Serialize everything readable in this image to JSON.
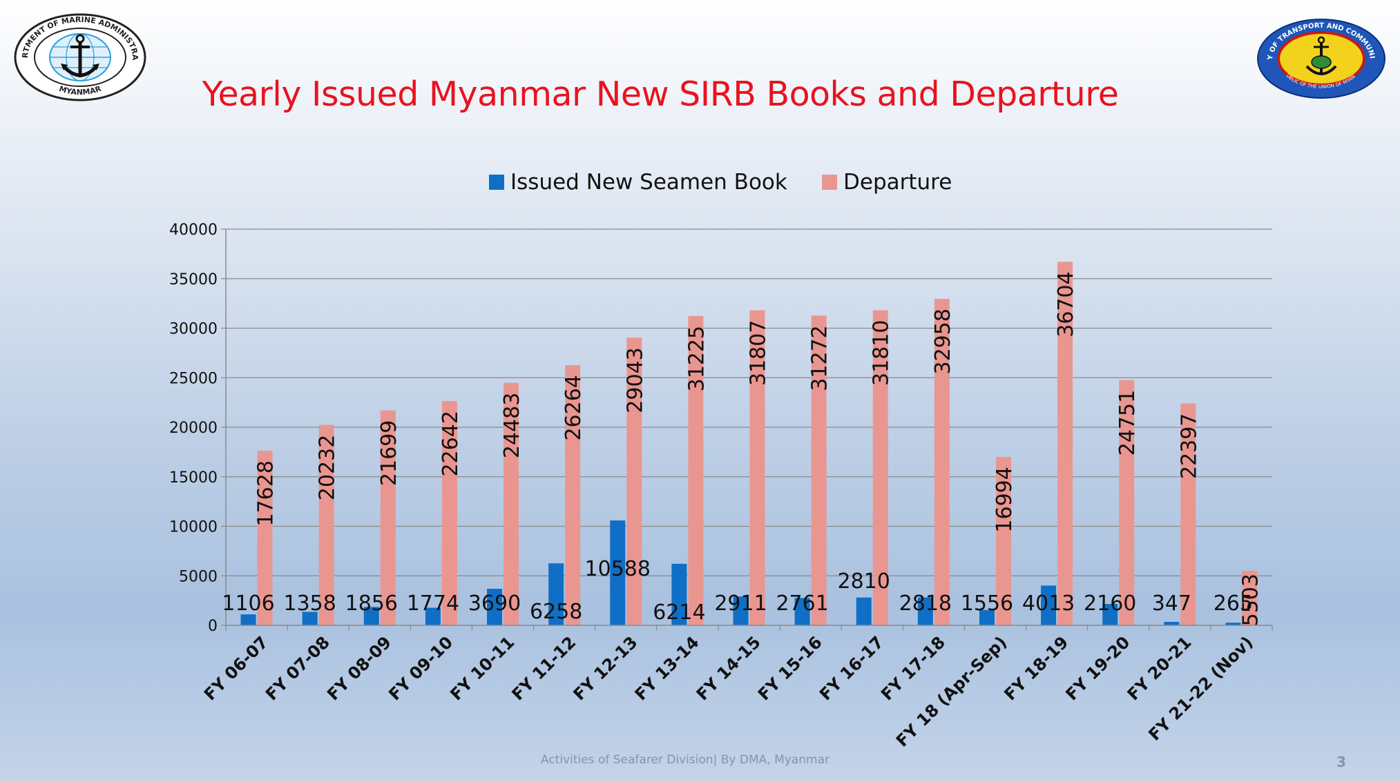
{
  "slide": {
    "title": "Yearly Issued Myanmar New SIRB Books and Departure",
    "footer": "Activities of Seafarer Division| By DMA, Myanmar",
    "page_number": "3"
  },
  "logos": {
    "left": {
      "text_top": "DEPARTMENT OF MARINE ADMINISTRATION",
      "text_bottom": "MYANMAR",
      "icon": "anchor-globe-icon"
    },
    "right": {
      "text_top": "MINISTRY OF TRANSPORT AND COMMUNICATIONS",
      "text_bottom": "REPUBLIC OF THE UNION OF MYANMAR",
      "icon": "anchor-emblem-icon"
    }
  },
  "chart_data": {
    "type": "bar",
    "title": "",
    "xlabel": "",
    "ylabel": "",
    "ylim": [
      0,
      40000
    ],
    "yticks": [
      0,
      5000,
      10000,
      15000,
      20000,
      25000,
      30000,
      35000,
      40000
    ],
    "grid": true,
    "legend_position": "top-center",
    "categories": [
      "FY 06-07",
      "FY 07-08",
      "FY 08-09",
      "FY 09-10",
      "FY 10-11",
      "FY 11-12",
      "FY 12-13",
      "FY 13-14",
      "FY 14-15",
      "FY 15-16",
      "FY 16-17",
      "FY 17-18",
      "FY 18 (Apr-Sep)",
      "FY 18-19",
      "FY 19-20",
      "FY 20-21",
      "FY 21-22 (Nov)"
    ],
    "series": [
      {
        "name": "Issued New Seamen Book",
        "color": "#0f6fc6",
        "values": [
          1106,
          1358,
          1856,
          1774,
          3690,
          6258,
          10588,
          6214,
          2911,
          2761,
          2810,
          2818,
          1556,
          4013,
          2160,
          347,
          265
        ]
      },
      {
        "name": "Departure",
        "color": "#ea9690",
        "values": [
          17628,
          20232,
          21699,
          22642,
          24483,
          26264,
          29043,
          31225,
          31807,
          31272,
          31810,
          32958,
          16994,
          36704,
          24751,
          22397,
          5503
        ]
      }
    ]
  }
}
